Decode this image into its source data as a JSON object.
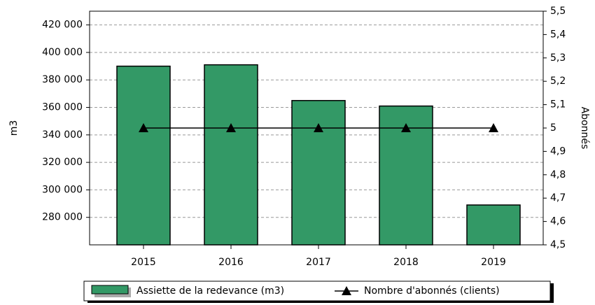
{
  "chart_data": {
    "type": "bar_line",
    "categories": [
      "2015",
      "2016",
      "2017",
      "2018",
      "2019"
    ],
    "series": [
      {
        "name": "Assiette de la redevance (m3)",
        "type": "bar",
        "color": "#339966",
        "values": [
          390000,
          391000,
          365000,
          361000,
          289000
        ]
      },
      {
        "name": "Nombre d'abonnés (clients)",
        "type": "line",
        "axis": "y2",
        "color": "#000000",
        "values": [
          5,
          5,
          5,
          5,
          5
        ]
      }
    ],
    "ylabel": "m3",
    "y2label": "Abonnés",
    "ylim": [
      260000,
      430000
    ],
    "yticks": [
      {
        "value": 280000,
        "label": "280 000"
      },
      {
        "value": 300000,
        "label": "300 000"
      },
      {
        "value": 320000,
        "label": "320 000"
      },
      {
        "value": 340000,
        "label": "340 000"
      },
      {
        "value": 360000,
        "label": "360 000"
      },
      {
        "value": 380000,
        "label": "380 000"
      },
      {
        "value": 400000,
        "label": "400 000"
      },
      {
        "value": 420000,
        "label": "420 000"
      }
    ],
    "y2lim": [
      4.5,
      5.5
    ],
    "y2ticks": [
      {
        "value": 4.5,
        "label": "4,5"
      },
      {
        "value": 4.6,
        "label": "4,6"
      },
      {
        "value": 4.7,
        "label": "4,7"
      },
      {
        "value": 4.8,
        "label": "4,8"
      },
      {
        "value": 4.9,
        "label": "4,9"
      },
      5,
      {
        "value": 5.1,
        "label": "5,1"
      },
      {
        "value": 5.2,
        "label": "5,2"
      },
      {
        "value": 5.3,
        "label": "5,3"
      },
      {
        "value": 5.4,
        "label": "5,4"
      },
      {
        "value": 5.5,
        "label": "5,5"
      }
    ],
    "grid": true,
    "legend": "bottom"
  }
}
